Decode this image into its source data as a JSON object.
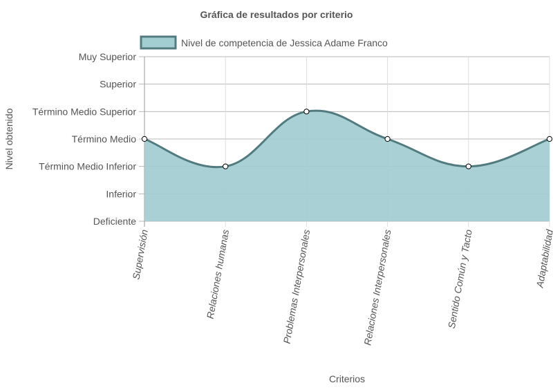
{
  "chart_data": {
    "type": "area",
    "title": "Gráfica de resultados por criterio",
    "xlabel": "Criterios",
    "ylabel": "Nivel obtenido",
    "y_levels": [
      "Deficiente",
      "Inferior",
      "Término Medio Inferior",
      "Término Medio",
      "Término Medio Superior",
      "Superior",
      "Muy Superior"
    ],
    "categories": [
      "Supervisión",
      "Relaciones humanas",
      "Problemas Interpersonales",
      "Relaciones Interpersonales",
      "Sentido Común y Tacto",
      "Adaptabilidad"
    ],
    "series": [
      {
        "name": "Nivel de competencia de Jessica Adame Franco",
        "values": [
          "Término Medio",
          "Término Medio Inferior",
          "Término Medio Superior",
          "Término Medio",
          "Término Medio Inferior",
          "Término Medio"
        ],
        "fill_color": "#a2cdd1",
        "line_color": "#527b80",
        "point_fill": "#ffffff",
        "point_stroke": "#000000"
      }
    ],
    "legend_position": "top",
    "grid": true,
    "smooth": true
  }
}
